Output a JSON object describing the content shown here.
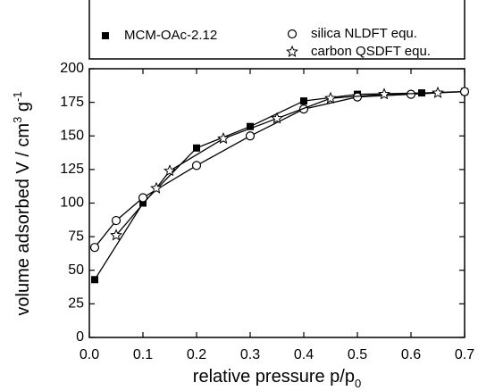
{
  "chart_data": {
    "type": "line",
    "x_label_parts": [
      "relative pressure p/p",
      "0"
    ],
    "y_label_parts": [
      "volume adsorbed V / cm",
      "3",
      " g",
      "-1"
    ],
    "xlim": [
      0,
      0.7
    ],
    "xticks": [
      {
        "value": 0,
        "label": "0.0"
      },
      0.1,
      0.2,
      0.3,
      0.4,
      0.5,
      0.6,
      0.7
    ],
    "ylim": [
      0,
      200
    ],
    "yticks": [
      0,
      25,
      50,
      75,
      100,
      125,
      150,
      175,
      200
    ],
    "series": [
      {
        "name": "MCM-OAc-2.12",
        "color": "#000000",
        "marker": "filled-square",
        "x": [
          0.01,
          0.1,
          0.2,
          0.3,
          0.4,
          0.5,
          0.62,
          0.7
        ],
        "values": [
          43,
          100,
          141,
          157,
          176,
          181,
          182,
          183
        ]
      },
      {
        "name": "silica NLDFT equ.",
        "color": "#000000",
        "marker": "open-circle",
        "x": [
          0.01,
          0.05,
          0.1,
          0.2,
          0.3,
          0.4,
          0.5,
          0.6,
          0.7
        ],
        "values": [
          67,
          87,
          104,
          128,
          150,
          170,
          179,
          181,
          183
        ]
      },
      {
        "name": "carbon QSDFT equ.",
        "color": "#000000",
        "marker": "open-star",
        "x": [
          0.05,
          0.125,
          0.15,
          0.25,
          0.35,
          0.45,
          0.55,
          0.65
        ],
        "values": [
          76,
          111,
          124,
          148,
          163,
          178,
          181,
          182
        ]
      }
    ]
  }
}
